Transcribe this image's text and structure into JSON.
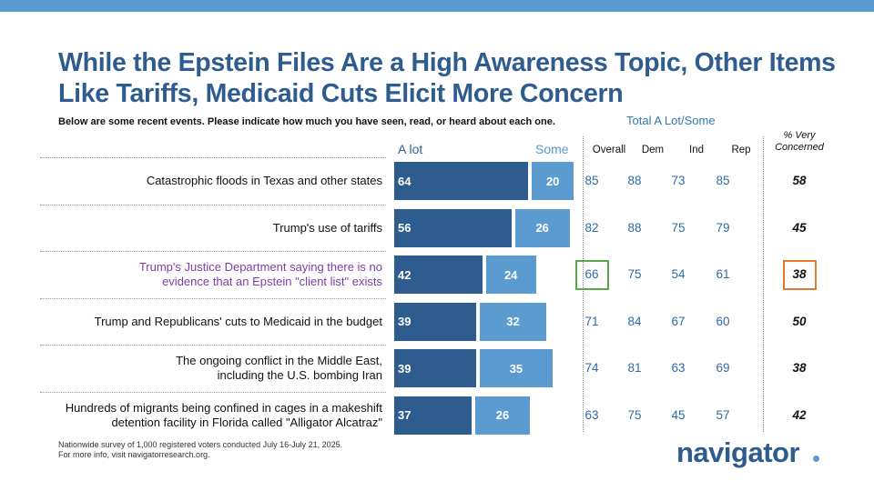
{
  "title": "While the Epstein Files Are a High Awareness Topic, Other Items Like Tariffs, Medicaid Cuts Elicit More Concern",
  "subtitle": "Below are some recent events. Please indicate how much you have seen, read, or heard about each one.",
  "total_label": "Total A Lot/Some",
  "headers": {
    "alot": "A lot",
    "some": "Some",
    "overall": "Overall",
    "dem": "Dem",
    "ind": "Ind",
    "rep": "Rep",
    "very_concerned": "% Very Concerned"
  },
  "colors": {
    "alot": "#2e5c8e",
    "some": "#5b9bd0",
    "highlight_text": "#7a3fa6",
    "green_box": "#5aa64a",
    "orange_box": "#e07a2e"
  },
  "chart_data": {
    "type": "bar",
    "orientation": "horizontal-stacked",
    "categories": [
      "Catastrophic floods in Texas and other states",
      "Trump's use of tariffs",
      "Trump's Justice Department saying there is no evidence that an Epstein \"client list\" exists",
      "Trump and Republicans' cuts to Medicaid in the budget",
      "The ongoing conflict in the Middle East, including the U.S. bombing Iran",
      "Hundreds of migrants being confined in cages in a makeshift detention facility in Florida called \"Alligator Alcatraz\""
    ],
    "series": [
      {
        "name": "A lot",
        "values": [
          64,
          56,
          42,
          39,
          39,
          37
        ]
      },
      {
        "name": "Some",
        "values": [
          20,
          26,
          24,
          32,
          35,
          26
        ]
      }
    ],
    "table_columns": [
      "Overall",
      "Dem",
      "Ind",
      "Rep",
      "% Very Concerned"
    ],
    "table": {
      "overall": [
        85,
        82,
        66,
        71,
        74,
        63
      ],
      "dem": [
        88,
        88,
        75,
        84,
        81,
        75
      ],
      "ind": [
        73,
        75,
        54,
        67,
        63,
        45
      ],
      "rep": [
        85,
        79,
        61,
        60,
        69,
        57
      ],
      "very_concerned": [
        58,
        45,
        38,
        50,
        38,
        42
      ]
    },
    "highlighted_row": 2
  },
  "footnote": {
    "line1": "Nationwide survey of 1,000 registered voters conducted July 16-July 21, 2025.",
    "line2": "For more info, visit navigatorresearch.org."
  },
  "logo": "navigator"
}
